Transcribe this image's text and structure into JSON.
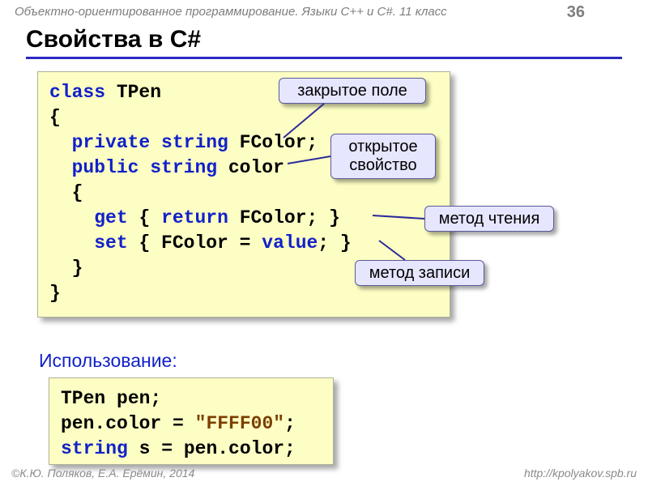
{
  "header": {
    "breadcrumb": "Объектно-ориентированное программирование. Языки C++ и C#. 11 класс",
    "page_number": "36"
  },
  "title": "Свойства в C#",
  "code1": {
    "lines": [
      [
        {
          "t": "class",
          "c": "kw"
        },
        {
          "t": " TPen"
        }
      ],
      [
        {
          "t": "{"
        }
      ],
      [
        {
          "t": "  "
        },
        {
          "t": "private",
          "c": "kw"
        },
        {
          "t": " "
        },
        {
          "t": "string",
          "c": "kw"
        },
        {
          "t": " FColor;"
        }
      ],
      [
        {
          "t": "  "
        },
        {
          "t": "public",
          "c": "kw"
        },
        {
          "t": " "
        },
        {
          "t": "string",
          "c": "kw"
        },
        {
          "t": " color"
        }
      ],
      [
        {
          "t": "  {"
        }
      ],
      [
        {
          "t": "    "
        },
        {
          "t": "get",
          "c": "kw"
        },
        {
          "t": " { "
        },
        {
          "t": "return",
          "c": "kw"
        },
        {
          "t": " FColor; }"
        }
      ],
      [
        {
          "t": "    "
        },
        {
          "t": "set",
          "c": "kw"
        },
        {
          "t": " { FColor = "
        },
        {
          "t": "value",
          "c": "val"
        },
        {
          "t": "; }"
        }
      ],
      [
        {
          "t": "  }"
        }
      ],
      [
        {
          "t": "}"
        }
      ]
    ]
  },
  "callouts": {
    "c1": "закрытое поле",
    "c2": "открытое свойство",
    "c3": "метод чтения",
    "c4": "метод записи"
  },
  "subhead": "Использование:",
  "code2": {
    "lines": [
      [
        {
          "t": "TPen pen;"
        }
      ],
      [
        {
          "t": "pen.color = "
        },
        {
          "t": "\"FFFF00\"",
          "c": "str"
        },
        {
          "t": ";"
        }
      ],
      [
        {
          "t": "string",
          "c": "kw"
        },
        {
          "t": " s = pen.color;"
        }
      ]
    ]
  },
  "footer": {
    "left": "©К.Ю. Поляков, Е.А. Ерёмин, 2014",
    "right": "http://kpolyakov.spb.ru"
  },
  "style": {
    "code_bg": "#fdfec4",
    "callout_bg": "#e6e6ff",
    "title_rule": "#2a2ac0",
    "kw_color": "#1121c9",
    "str_color": "#7b3f00",
    "shadow": "rgba(0,0,0,0.35)"
  }
}
